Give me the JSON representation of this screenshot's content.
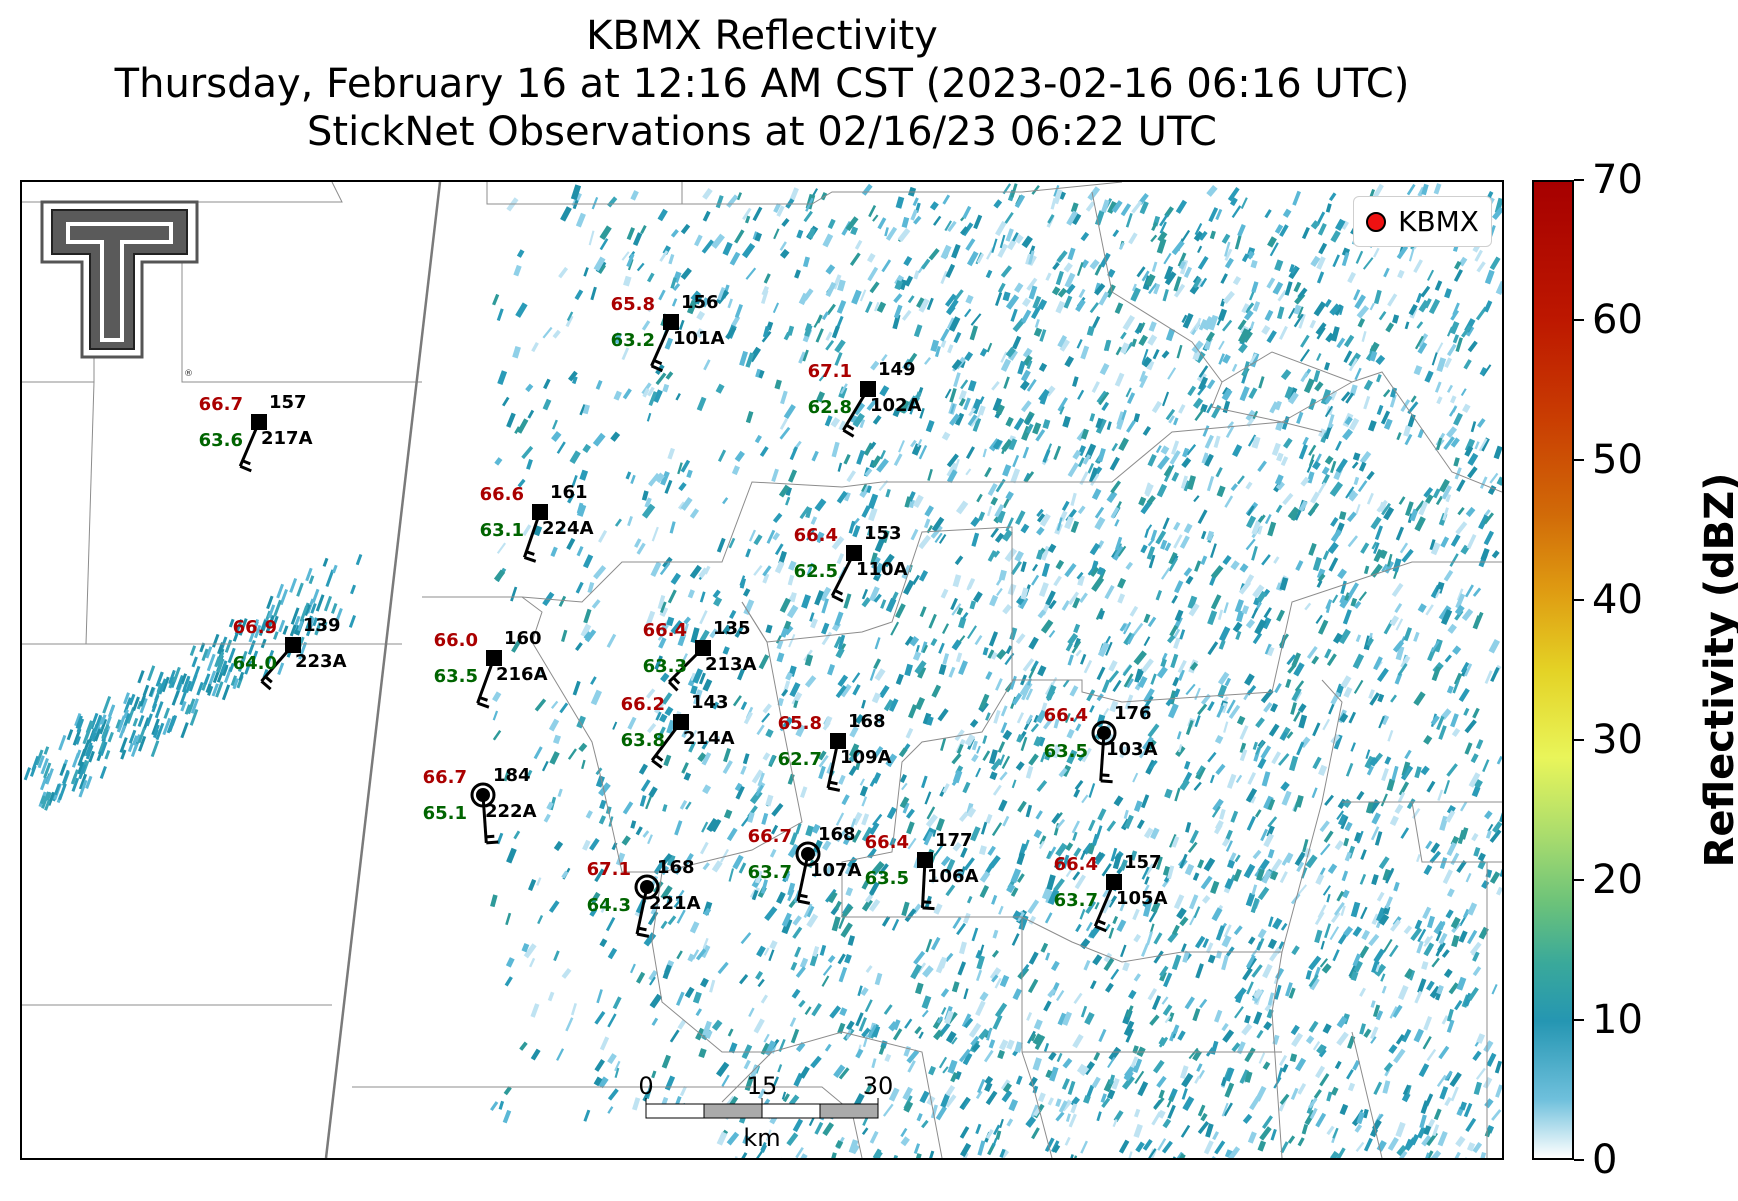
{
  "title": {
    "line1": "KBMX Reflectivity",
    "line2": "Thursday, February 16 at 12:16 AM CST (2023-02-16 06:16 UTC)",
    "line3": "StickNet Observations at 02/16/23 06:22 UTC"
  },
  "legend": {
    "label": "KBMX",
    "marker_color": "#ee1111"
  },
  "colorbar": {
    "label": "Reflectivity (dBZ)",
    "ticks": [
      "0",
      "10",
      "20",
      "30",
      "40",
      "50",
      "60",
      "70"
    ]
  },
  "scale_bar": {
    "ticks": [
      "0",
      "15",
      "30"
    ],
    "unit": "km"
  },
  "logo": "texas-tech-double-t-logo",
  "colors": {
    "temperature": "#aa0000",
    "dewpoint": "#006400",
    "station": "#000000"
  },
  "stations": [
    {
      "id": "101A",
      "temp": "65.8",
      "dew": "63.2",
      "dir": "156",
      "marker": "square"
    },
    {
      "id": "102A",
      "temp": "67.1",
      "dew": "62.8",
      "dir": "149",
      "marker": "square"
    },
    {
      "id": "217A",
      "temp": "66.7",
      "dew": "63.6",
      "dir": "157",
      "marker": "square"
    },
    {
      "id": "224A",
      "temp": "66.6",
      "dew": "63.1",
      "dir": "161",
      "marker": "square"
    },
    {
      "id": "110A",
      "temp": "66.4",
      "dew": "62.5",
      "dir": "153",
      "marker": "square"
    },
    {
      "id": "223A",
      "temp": "66.9",
      "dew": "64.0",
      "dir": "139",
      "marker": "square"
    },
    {
      "id": "216A",
      "temp": "66.0",
      "dew": "63.5",
      "dir": "160",
      "marker": "square"
    },
    {
      "id": "213A",
      "temp": "66.4",
      "dew": "63.3",
      "dir": "135",
      "marker": "square"
    },
    {
      "id": "214A",
      "temp": "66.2",
      "dew": "63.8",
      "dir": "143",
      "marker": "square"
    },
    {
      "id": "109A",
      "temp": "65.8",
      "dew": "62.7",
      "dir": "168",
      "marker": "square"
    },
    {
      "id": "103A",
      "temp": "66.4",
      "dew": "63.5",
      "dir": "176",
      "marker": "calm"
    },
    {
      "id": "222A",
      "temp": "66.7",
      "dew": "65.1",
      "dir": "184",
      "marker": "calm"
    },
    {
      "id": "107A",
      "temp": "66.7",
      "dew": "63.7",
      "dir": "168",
      "marker": "calm"
    },
    {
      "id": "106A",
      "temp": "66.4",
      "dew": "63.5",
      "dir": "177",
      "marker": "square"
    },
    {
      "id": "221A",
      "temp": "67.1",
      "dew": "64.3",
      "dir": "168",
      "marker": "calm"
    },
    {
      "id": "105A",
      "temp": "66.4",
      "dew": "63.7",
      "dir": "157",
      "marker": "square"
    }
  ]
}
